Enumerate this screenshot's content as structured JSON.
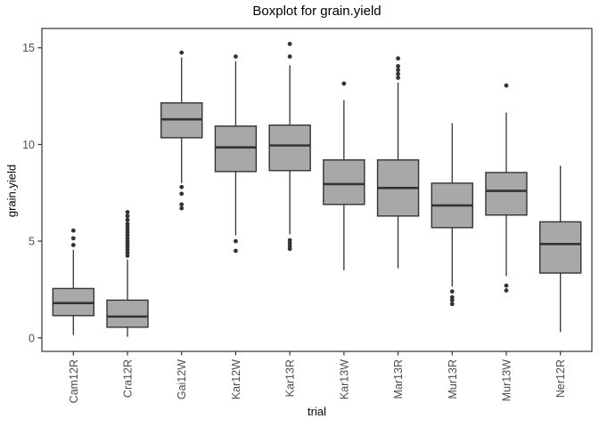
{
  "title": "Boxplot for grain.yield",
  "axes": {
    "x_label": "trial",
    "y_label": "grain.yield"
  },
  "style": {
    "box_fill": "#a8a8a8",
    "line_color": "#333333",
    "panel_border_color": "#333333",
    "axis_text_color": "#4d4d4d",
    "title_color": "#000000",
    "background": "#ffffff"
  },
  "chart_data": {
    "type": "boxplot",
    "title": "Boxplot for grain.yield",
    "xlabel": "trial",
    "ylabel": "grain.yield",
    "ylim": [
      -0.7,
      16.0
    ],
    "y_ticks": [
      0,
      5,
      10,
      15
    ],
    "grid": false,
    "legend": false,
    "categories": [
      "Cam12R",
      "Cra12R",
      "Gai12W",
      "Kar12W",
      "Kar13R",
      "Kar13W",
      "Mar13R",
      "Mur13R",
      "Mur13W",
      "Ner12R"
    ],
    "boxes": [
      {
        "label": "Cam12R",
        "whisker_low": 0.15,
        "q1": 1.15,
        "median": 1.8,
        "q3": 2.55,
        "whisker_high": 4.55,
        "outliers": [
          4.8,
          5.15,
          5.55
        ]
      },
      {
        "label": "Cra12R",
        "whisker_low": 0.05,
        "q1": 0.55,
        "median": 1.1,
        "q3": 1.95,
        "whisker_high": 4.05,
        "outliers": [
          4.25,
          4.4,
          4.55,
          4.7,
          4.85,
          5.0,
          5.15,
          5.3,
          5.45,
          5.6,
          5.75,
          5.9,
          6.1,
          6.3,
          6.5
        ]
      },
      {
        "label": "Gai12W",
        "whisker_low": 8.0,
        "q1": 10.35,
        "median": 11.3,
        "q3": 12.15,
        "whisker_high": 14.5,
        "outliers": [
          14.75,
          7.8,
          7.45,
          6.9,
          6.7
        ]
      },
      {
        "label": "Kar12W",
        "whisker_low": 5.3,
        "q1": 8.6,
        "median": 9.85,
        "q3": 10.95,
        "whisker_high": 14.3,
        "outliers": [
          14.55,
          5.0,
          4.5
        ]
      },
      {
        "label": "Kar13R",
        "whisker_low": 5.35,
        "q1": 8.65,
        "median": 9.95,
        "q3": 11.0,
        "whisker_high": 14.1,
        "outliers": [
          15.2,
          14.55,
          5.05,
          4.9,
          4.75,
          4.6
        ]
      },
      {
        "label": "Kar13W",
        "whisker_low": 3.5,
        "q1": 6.9,
        "median": 7.95,
        "q3": 9.2,
        "whisker_high": 12.3,
        "outliers": [
          13.15
        ]
      },
      {
        "label": "Mar13R",
        "whisker_low": 3.6,
        "q1": 6.3,
        "median": 7.75,
        "q3": 9.2,
        "whisker_high": 13.2,
        "outliers": [
          14.45,
          14.05,
          13.85,
          13.65,
          13.45
        ]
      },
      {
        "label": "Mur13R",
        "whisker_low": 2.65,
        "q1": 5.7,
        "median": 6.85,
        "q3": 8.0,
        "whisker_high": 11.1,
        "outliers": [
          2.4,
          2.1,
          1.95,
          1.75
        ]
      },
      {
        "label": "Mur13W",
        "whisker_low": 3.2,
        "q1": 6.35,
        "median": 7.6,
        "q3": 8.55,
        "whisker_high": 11.65,
        "outliers": [
          13.05,
          2.7,
          2.45
        ]
      },
      {
        "label": "Ner12R",
        "whisker_low": 0.3,
        "q1": 3.35,
        "median": 4.85,
        "q3": 6.0,
        "whisker_high": 8.9,
        "outliers": []
      }
    ]
  }
}
